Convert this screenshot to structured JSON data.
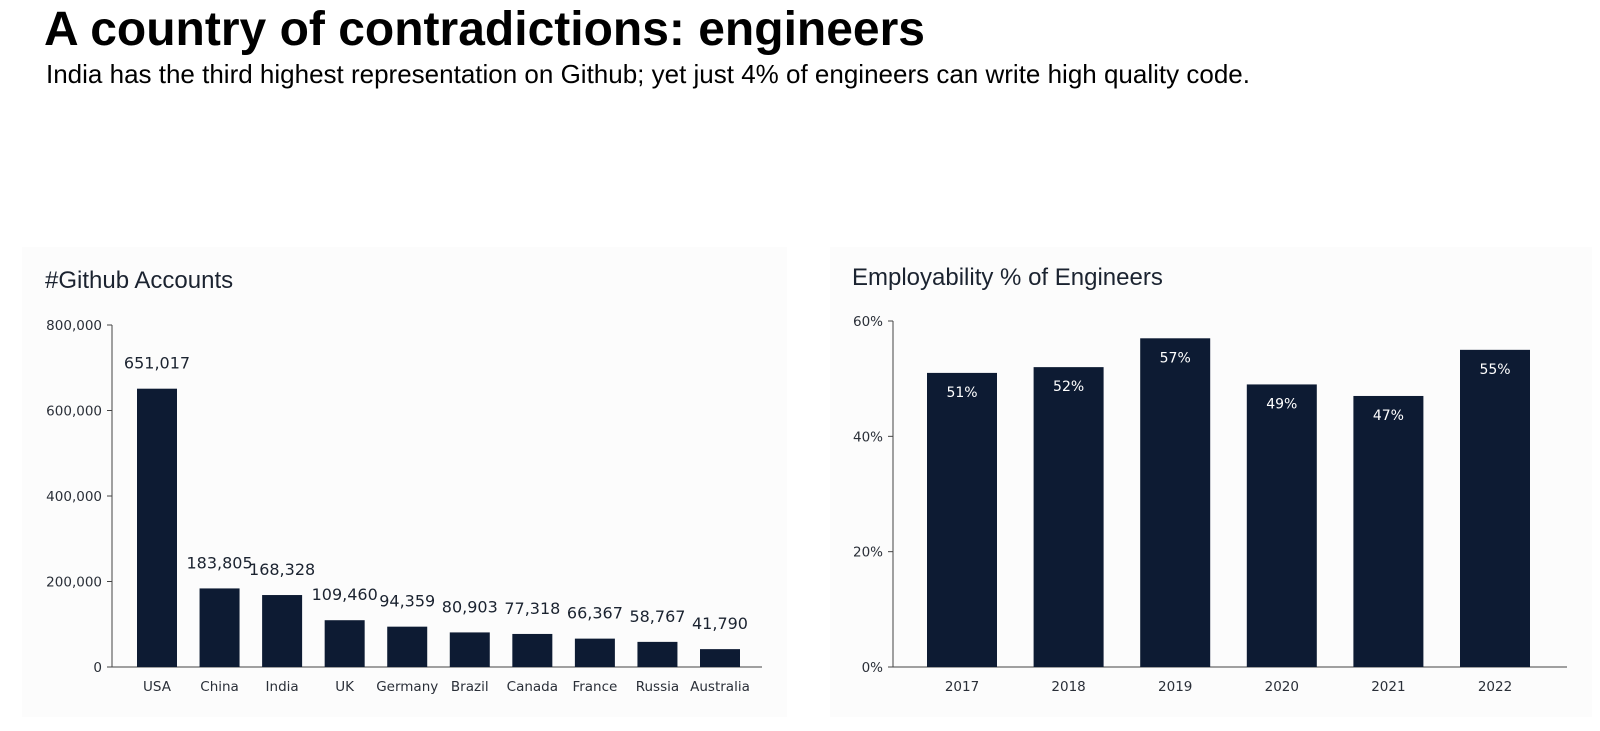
{
  "header": {
    "title": "A country of contradictions: engineers",
    "subtitle": "India has the third highest representation on Github; yet just 4% of engineers can write high quality code."
  },
  "colors": {
    "bar": "#0d1b33",
    "axis": "#444444",
    "panel": "#fcfcfc"
  },
  "chart_data": [
    {
      "type": "bar",
      "title": "#Github Accounts",
      "categories": [
        "USA",
        "China",
        "India",
        "UK",
        "Germany",
        "Brazil",
        "Canada",
        "France",
        "Russia",
        "Australia"
      ],
      "values": [
        651017,
        183805,
        168328,
        109460,
        94359,
        80903,
        77318,
        66367,
        58767,
        41790
      ],
      "value_labels": [
        "651,017",
        "183,805",
        "168,328",
        "109,460",
        "94,359",
        "80,903",
        "77,318",
        "66,367",
        "58,767",
        "41,790"
      ],
      "yticks": [
        0,
        200000,
        400000,
        600000,
        800000
      ],
      "ytick_labels": [
        "0",
        "200,000",
        "400,000",
        "600,000",
        "800,000"
      ],
      "ylim": [
        0,
        800000
      ],
      "xlabel": "",
      "ylabel": "",
      "label_position": "above"
    },
    {
      "type": "bar",
      "title": "Employability % of Engineers",
      "categories": [
        "2017",
        "2018",
        "2019",
        "2020",
        "2021",
        "2022"
      ],
      "values": [
        51,
        52,
        57,
        49,
        47,
        55
      ],
      "value_labels": [
        "51%",
        "52%",
        "57%",
        "49%",
        "47%",
        "55%"
      ],
      "yticks": [
        0,
        20,
        40,
        60
      ],
      "ytick_labels": [
        "0%",
        "20%",
        "40%",
        "60%"
      ],
      "ylim": [
        0,
        60
      ],
      "xlabel": "",
      "ylabel": "",
      "label_position": "inside-top"
    }
  ]
}
